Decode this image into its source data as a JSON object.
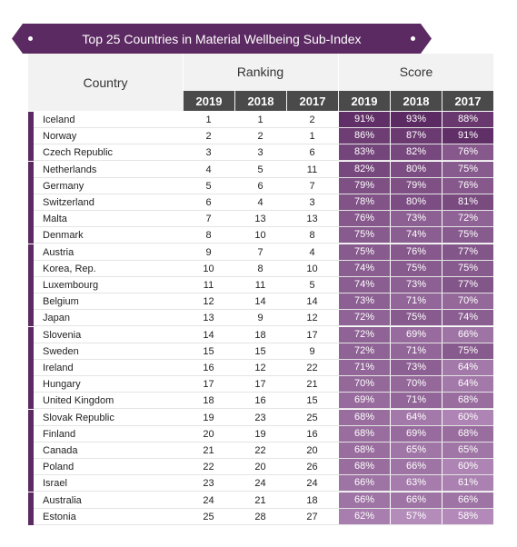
{
  "chart_data": {
    "type": "table",
    "title": "Top 25 Countries in Material Wellbeing Sub-Index",
    "country_header": "Country",
    "ranking_header": "Ranking",
    "score_header": "Score",
    "years": [
      "2019",
      "2018",
      "2017"
    ],
    "rows": [
      {
        "country": "Iceland",
        "rank": [
          "1",
          "1",
          "2"
        ],
        "score": [
          "91%",
          "93%",
          "88%"
        ]
      },
      {
        "country": "Norway",
        "rank": [
          "2",
          "2",
          "1"
        ],
        "score": [
          "86%",
          "87%",
          "91%"
        ]
      },
      {
        "country": "Czech Republic",
        "rank": [
          "3",
          "3",
          "6"
        ],
        "score": [
          "83%",
          "82%",
          "76%"
        ]
      },
      {
        "country": "Netherlands",
        "rank": [
          "4",
          "5",
          "11"
        ],
        "score": [
          "82%",
          "80%",
          "75%"
        ]
      },
      {
        "country": "Germany",
        "rank": [
          "5",
          "6",
          "7"
        ],
        "score": [
          "79%",
          "79%",
          "76%"
        ]
      },
      {
        "country": "Switzerland",
        "rank": [
          "6",
          "4",
          "3"
        ],
        "score": [
          "78%",
          "80%",
          "81%"
        ]
      },
      {
        "country": "Malta",
        "rank": [
          "7",
          "13",
          "13"
        ],
        "score": [
          "76%",
          "73%",
          "72%"
        ]
      },
      {
        "country": "Denmark",
        "rank": [
          "8",
          "10",
          "8"
        ],
        "score": [
          "75%",
          "74%",
          "75%"
        ]
      },
      {
        "country": "Austria",
        "rank": [
          "9",
          "7",
          "4"
        ],
        "score": [
          "75%",
          "76%",
          "77%"
        ]
      },
      {
        "country": "Korea, Rep.",
        "rank": [
          "10",
          "8",
          "10"
        ],
        "score": [
          "74%",
          "75%",
          "75%"
        ]
      },
      {
        "country": "Luxembourg",
        "rank": [
          "11",
          "11",
          "5"
        ],
        "score": [
          "74%",
          "73%",
          "77%"
        ]
      },
      {
        "country": "Belgium",
        "rank": [
          "12",
          "14",
          "14"
        ],
        "score": [
          "73%",
          "71%",
          "70%"
        ]
      },
      {
        "country": "Japan",
        "rank": [
          "13",
          "9",
          "12"
        ],
        "score": [
          "72%",
          "75%",
          "74%"
        ]
      },
      {
        "country": "Slovenia",
        "rank": [
          "14",
          "18",
          "17"
        ],
        "score": [
          "72%",
          "69%",
          "66%"
        ]
      },
      {
        "country": "Sweden",
        "rank": [
          "15",
          "15",
          "9"
        ],
        "score": [
          "72%",
          "71%",
          "75%"
        ]
      },
      {
        "country": "Ireland",
        "rank": [
          "16",
          "12",
          "22"
        ],
        "score": [
          "71%",
          "73%",
          "64%"
        ]
      },
      {
        "country": "Hungary",
        "rank": [
          "17",
          "17",
          "21"
        ],
        "score": [
          "70%",
          "70%",
          "64%"
        ]
      },
      {
        "country": "United Kingdom",
        "rank": [
          "18",
          "16",
          "15"
        ],
        "score": [
          "69%",
          "71%",
          "68%"
        ]
      },
      {
        "country": "Slovak Republic",
        "rank": [
          "19",
          "23",
          "25"
        ],
        "score": [
          "68%",
          "64%",
          "60%"
        ]
      },
      {
        "country": "Finland",
        "rank": [
          "20",
          "19",
          "16"
        ],
        "score": [
          "68%",
          "69%",
          "68%"
        ]
      },
      {
        "country": "Canada",
        "rank": [
          "21",
          "22",
          "20"
        ],
        "score": [
          "68%",
          "65%",
          "65%"
        ]
      },
      {
        "country": "Poland",
        "rank": [
          "22",
          "20",
          "26"
        ],
        "score": [
          "68%",
          "66%",
          "60%"
        ]
      },
      {
        "country": "Israel",
        "rank": [
          "23",
          "24",
          "24"
        ],
        "score": [
          "66%",
          "63%",
          "61%"
        ]
      },
      {
        "country": "Australia",
        "rank": [
          "24",
          "21",
          "18"
        ],
        "score": [
          "66%",
          "66%",
          "66%"
        ]
      },
      {
        "country": "Estonia",
        "rank": [
          "25",
          "28",
          "27"
        ],
        "score": [
          "62%",
          "57%",
          "58%"
        ]
      }
    ]
  },
  "colors": {
    "accent": "#5c2a62",
    "header_dark": "#4a4a4a",
    "score_high": "#5c2a62",
    "score_low": "#b48cba"
  }
}
